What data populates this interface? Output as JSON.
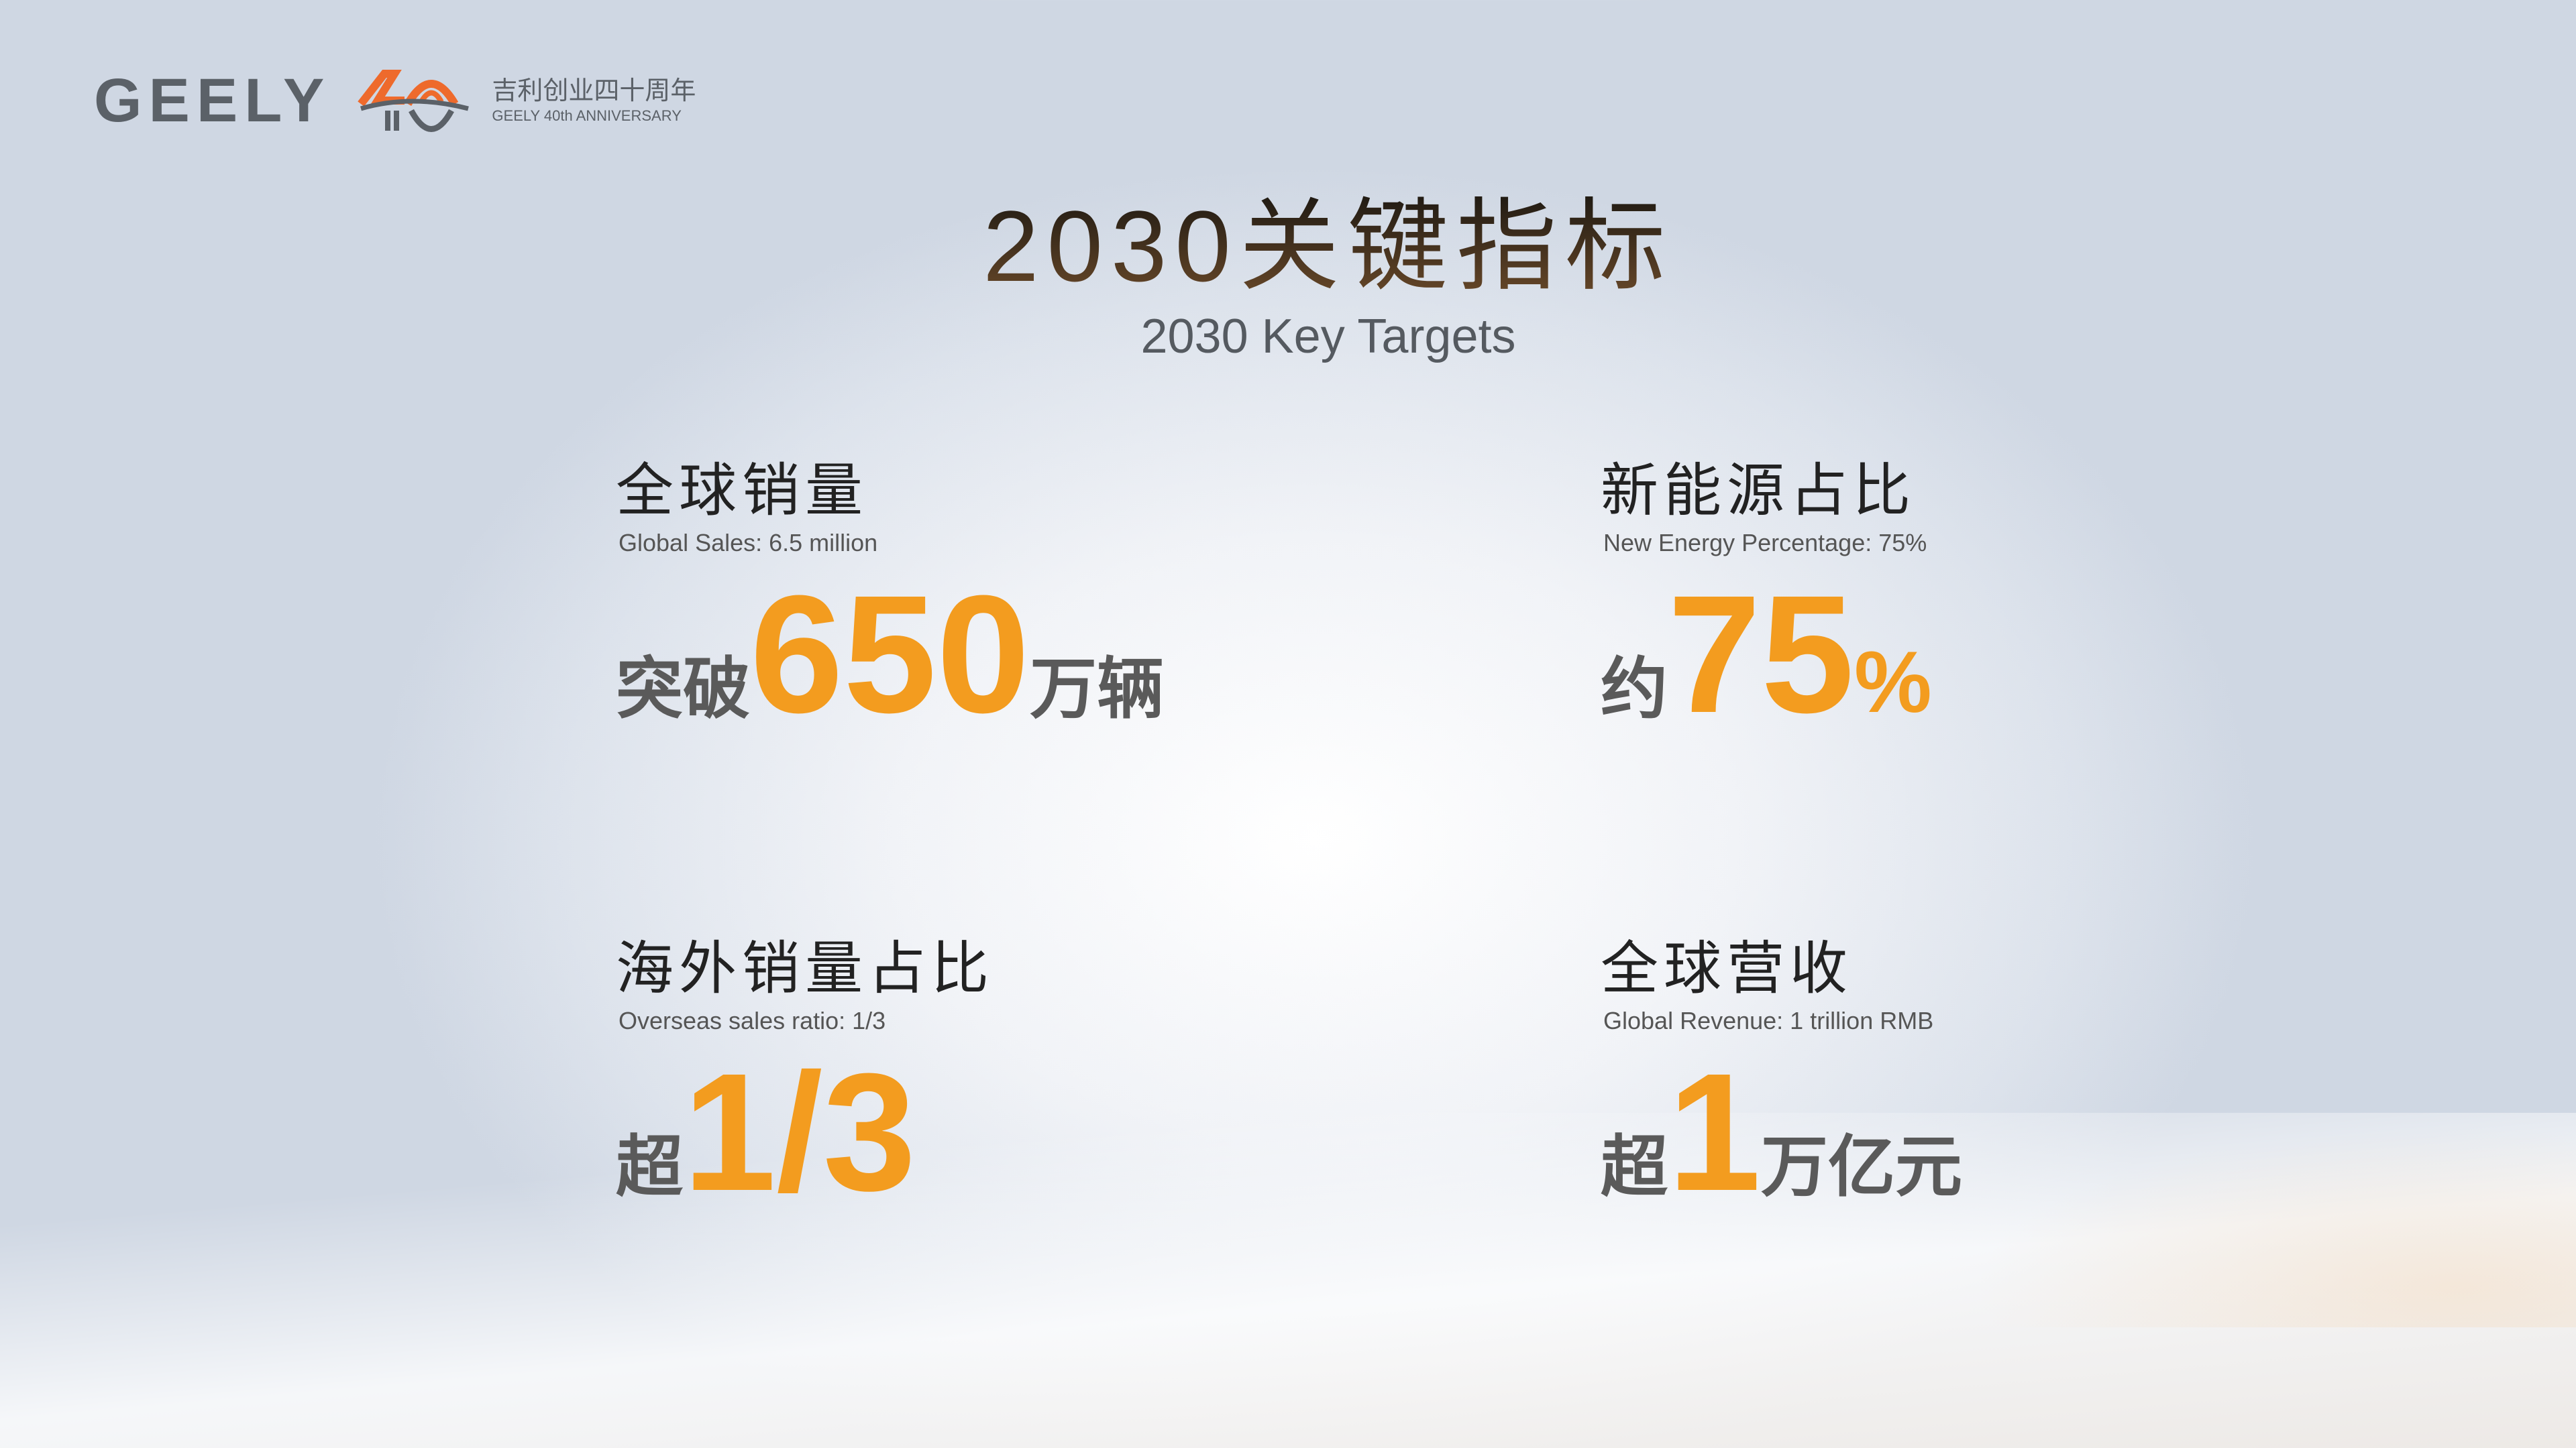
{
  "logo": {
    "brand": "GEELY",
    "anniversary_cn": "吉利创业四十周年",
    "anniversary_en": "GEELY 40th ANNIVERSARY"
  },
  "title": "2030关键指标",
  "subtitle": "2030 Key Targets",
  "colors": {
    "accent": "#f39c1f",
    "text": "#5a5a5a"
  },
  "metrics": [
    {
      "heading": "全球销量",
      "english": "Global Sales: 6.5 million",
      "prefix": "突破",
      "value": "650",
      "suffix": "万辆"
    },
    {
      "heading": "新能源占比",
      "english": "New Energy Percentage: 75%",
      "prefix": "约",
      "value": "75",
      "suffix": "%"
    },
    {
      "heading": "海外销量占比",
      "english": "Overseas sales ratio: 1/3",
      "prefix": "超",
      "value": "1/3",
      "suffix": ""
    },
    {
      "heading": "全球营收",
      "english": "Global Revenue: 1 trillion RMB",
      "prefix": "超",
      "value": "1",
      "suffix": "万亿元"
    }
  ]
}
